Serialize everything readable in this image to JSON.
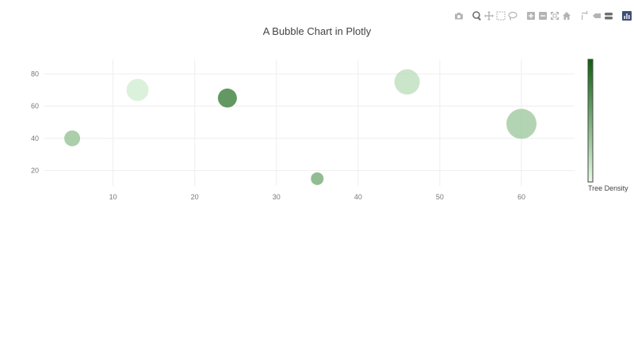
{
  "modebar": {
    "buttons": [
      {
        "name": "camera-icon",
        "group": 0,
        "active": false
      },
      {
        "name": "zoom-icon",
        "group": 1,
        "active": true
      },
      {
        "name": "pan-icon",
        "group": 1,
        "active": false
      },
      {
        "name": "box-select-icon",
        "group": 1,
        "active": false
      },
      {
        "name": "lasso-select-icon",
        "group": 1,
        "active": false
      },
      {
        "name": "zoom-in-icon",
        "group": 2,
        "active": false
      },
      {
        "name": "zoom-out-icon",
        "group": 2,
        "active": false
      },
      {
        "name": "autoscale-icon",
        "group": 2,
        "active": false
      },
      {
        "name": "reset-axes-icon",
        "group": 2,
        "active": false
      },
      {
        "name": "spike-lines-icon",
        "group": 3,
        "active": false
      },
      {
        "name": "hover-closest-icon",
        "group": 3,
        "active": false
      },
      {
        "name": "hover-compare-icon",
        "group": 3,
        "active": true
      },
      {
        "name": "plotly-logo-icon",
        "group": 4,
        "active": false
      }
    ]
  },
  "chart_data": {
    "type": "scatter",
    "title": "A Bubble Chart in Plotly",
    "xlim": [
      1.5,
      66.5
    ],
    "ylim": [
      10.5,
      89
    ],
    "xticks": [
      10,
      20,
      30,
      40,
      50,
      60
    ],
    "yticks": [
      20,
      40,
      60,
      80
    ],
    "grid": true,
    "points": [
      {
        "x": 5,
        "y": 40,
        "size": 10,
        "color": 40
      },
      {
        "x": 13,
        "y": 70,
        "size": 14,
        "color": 10
      },
      {
        "x": 24,
        "y": 65,
        "size": 12,
        "color": 85
      },
      {
        "x": 35,
        "y": 15,
        "size": 8,
        "color": 55
      },
      {
        "x": 46,
        "y": 75,
        "size": 16,
        "color": 20
      },
      {
        "x": 60,
        "y": 49,
        "size": 19,
        "color": 35
      }
    ],
    "colorbar": {
      "title": "Tree Density",
      "colors": [
        "#e6fbe6",
        "#0c600c"
      ],
      "range": [
        0,
        100
      ]
    }
  }
}
